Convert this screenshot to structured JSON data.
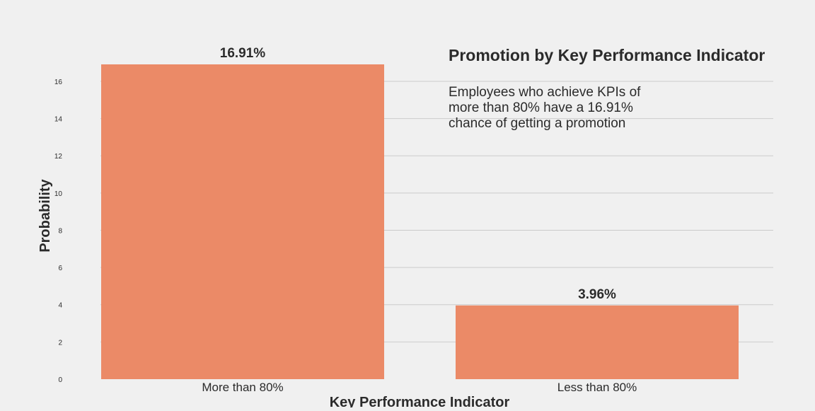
{
  "chart_data": {
    "type": "bar",
    "title": "Promotion by Key Performance Indicator",
    "annotation": [
      "Employees who achieve KPIs of",
      "more than 80% have a 16.91%",
      "chance of getting a promotion"
    ],
    "xlabel": "Key Performance Indicator",
    "ylabel": "Probability",
    "categories": [
      "More than 80%",
      "Less than 80%"
    ],
    "values": [
      16.91,
      3.96
    ],
    "data_labels": [
      "16.91%",
      "3.96%"
    ],
    "ylim": [
      0,
      16.91
    ],
    "yticks": [
      0,
      2,
      4,
      6,
      8,
      10,
      12,
      14,
      16
    ],
    "grid": "horizontal",
    "colors": {
      "bar": "#eb8a67",
      "background": "#f0f0f0",
      "grid": "#cbcbcb",
      "text": "#2b2b2b"
    }
  }
}
